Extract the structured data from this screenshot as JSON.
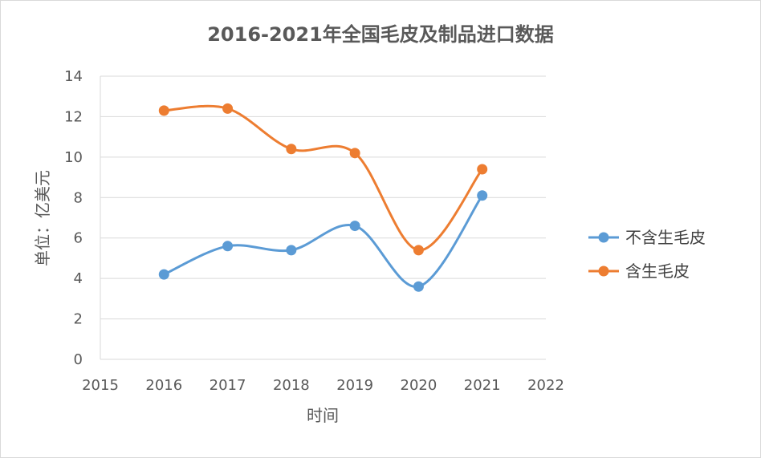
{
  "chart_data": {
    "type": "line",
    "title": "2016-2021年全国毛皮及制品进口数据",
    "xlabel": "时间",
    "ylabel": "单位：亿美元",
    "xlim": [
      2015,
      2022
    ],
    "ylim": [
      0,
      14
    ],
    "xticks": [
      "2015",
      "2016",
      "2017",
      "2018",
      "2019",
      "2020",
      "2021",
      "2022"
    ],
    "yticks": [
      "0",
      "2",
      "4",
      "6",
      "8",
      "10",
      "12",
      "14"
    ],
    "smooth": true,
    "grid": true,
    "legend_position": "right",
    "series": [
      {
        "name": "不含生毛皮",
        "color": "#5b9bd5",
        "x": [
          2016,
          2017,
          2018,
          2019,
          2020,
          2021
        ],
        "values": [
          4.2,
          5.6,
          5.4,
          6.6,
          3.6,
          8.1
        ]
      },
      {
        "name": "含生毛皮",
        "color": "#ed7d31",
        "x": [
          2016,
          2017,
          2018,
          2019,
          2020,
          2021
        ],
        "values": [
          12.3,
          12.4,
          10.4,
          10.2,
          5.4,
          9.4
        ]
      }
    ]
  }
}
